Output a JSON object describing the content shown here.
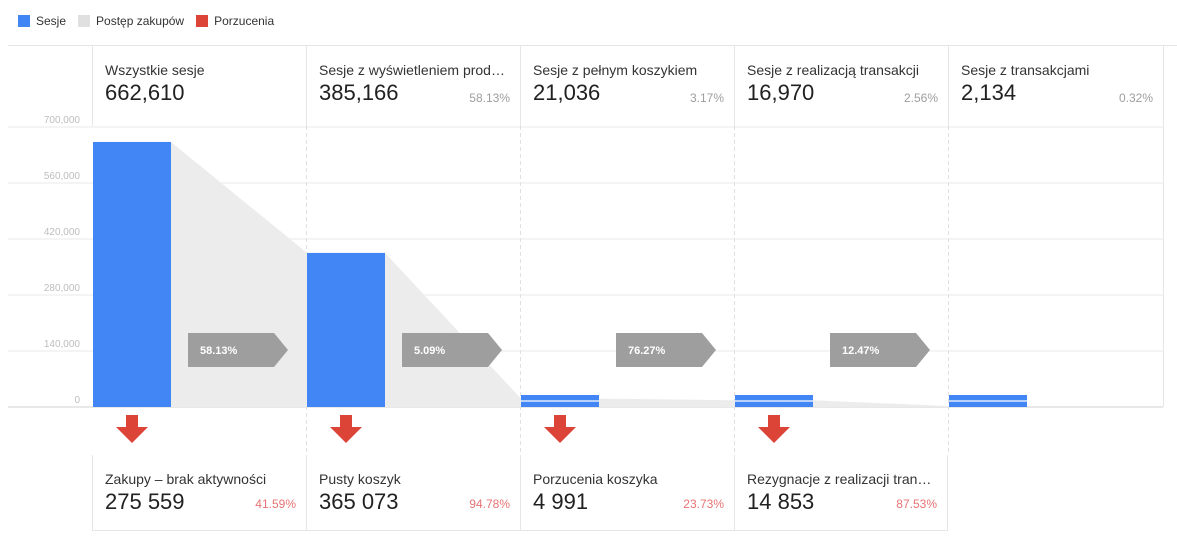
{
  "legend": [
    {
      "label": "Sesje",
      "color": "#4285f4"
    },
    {
      "label": "Postęp zakupów",
      "color": "#e0e0e0"
    },
    {
      "label": "Porzucenia",
      "color": "#db4437"
    }
  ],
  "stages": [
    {
      "label": "Wszystkie sesje",
      "value": "662,610",
      "pct": ""
    },
    {
      "label": "Sesje z wyświetleniem produktu",
      "value": "385,166",
      "pct": "58.13%"
    },
    {
      "label": "Sesje z pełnym koszykiem",
      "value": "21,036",
      "pct": "3.17%"
    },
    {
      "label": "Sesje z realizacją transakcji",
      "value": "16,970",
      "pct": "2.56%"
    },
    {
      "label": "Sesje z transakcjami",
      "value": "2,134",
      "pct": "0.32%"
    }
  ],
  "progress": [
    "58.13%",
    "5.09%",
    "76.27%",
    "12.47%"
  ],
  "abandonments": [
    {
      "label": "Zakupy – brak aktywności",
      "value": "275 559",
      "pct": "41.59%"
    },
    {
      "label": "Pusty koszyk",
      "value": "365 073",
      "pct": "94.78%"
    },
    {
      "label": "Porzucenia koszyka",
      "value": "4 991",
      "pct": "23.73%"
    },
    {
      "label": "Rezygnacje z realizacji transakcji",
      "value": "14 853",
      "pct": "87.53%"
    }
  ],
  "chart_data": {
    "type": "bar",
    "categories": [
      "Wszystkie sesje",
      "Sesje z wyświetleniem produktu",
      "Sesje z pełnym koszykiem",
      "Sesje z realizacją transakcji",
      "Sesje z transakcjami"
    ],
    "series": [
      {
        "name": "Sesje",
        "values": [
          662610,
          385166,
          21036,
          16970,
          2134
        ]
      }
    ],
    "yticks": [
      "0",
      "140,000",
      "280,000",
      "420,000",
      "560,000",
      "700,000"
    ],
    "ylim": [
      0,
      700000
    ],
    "grid": true,
    "legend_position": "top-left"
  }
}
